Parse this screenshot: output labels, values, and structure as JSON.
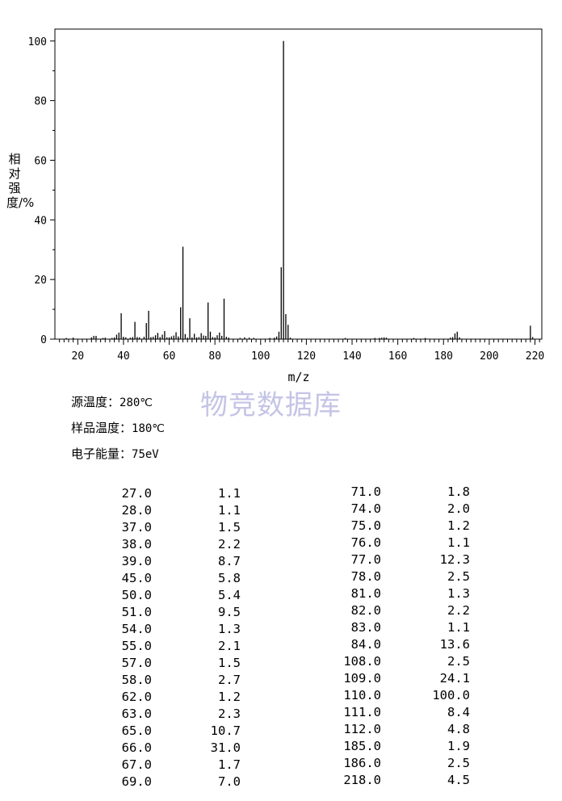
{
  "chart_data": {
    "type": "bar",
    "xlabel": "m/z",
    "ylabel": "相对强度/%",
    "xlim": [
      10,
      223
    ],
    "ylim": [
      0,
      104
    ],
    "xticks": [
      20,
      40,
      60,
      80,
      100,
      120,
      140,
      160,
      180,
      200,
      220
    ],
    "yticks": [
      0,
      20,
      40,
      60,
      80,
      100
    ],
    "peaks": [
      {
        "x": 15,
        "y": 0.4
      },
      {
        "x": 18,
        "y": 0.5
      },
      {
        "x": 26,
        "y": 0.6
      },
      {
        "x": 27,
        "y": 1.1
      },
      {
        "x": 28,
        "y": 1.1
      },
      {
        "x": 31,
        "y": 0.4
      },
      {
        "x": 32,
        "y": 0.5
      },
      {
        "x": 35,
        "y": 0.4
      },
      {
        "x": 36,
        "y": 0.6
      },
      {
        "x": 37,
        "y": 1.5
      },
      {
        "x": 38,
        "y": 2.2
      },
      {
        "x": 39,
        "y": 8.7
      },
      {
        "x": 40,
        "y": 0.8
      },
      {
        "x": 41,
        "y": 0.6
      },
      {
        "x": 43,
        "y": 0.5
      },
      {
        "x": 44,
        "y": 0.7
      },
      {
        "x": 45,
        "y": 5.8
      },
      {
        "x": 46,
        "y": 0.7
      },
      {
        "x": 47,
        "y": 0.6
      },
      {
        "x": 49,
        "y": 0.8
      },
      {
        "x": 50,
        "y": 5.4
      },
      {
        "x": 51,
        "y": 9.5
      },
      {
        "x": 52,
        "y": 0.7
      },
      {
        "x": 53,
        "y": 0.8
      },
      {
        "x": 54,
        "y": 1.3
      },
      {
        "x": 55,
        "y": 2.1
      },
      {
        "x": 56,
        "y": 0.7
      },
      {
        "x": 57,
        "y": 1.5
      },
      {
        "x": 58,
        "y": 2.7
      },
      {
        "x": 59,
        "y": 0.6
      },
      {
        "x": 60,
        "y": 0.6
      },
      {
        "x": 61,
        "y": 0.9
      },
      {
        "x": 62,
        "y": 1.2
      },
      {
        "x": 63,
        "y": 2.3
      },
      {
        "x": 64,
        "y": 0.9
      },
      {
        "x": 65,
        "y": 10.7
      },
      {
        "x": 66,
        "y": 31.0
      },
      {
        "x": 67,
        "y": 1.7
      },
      {
        "x": 68,
        "y": 0.5
      },
      {
        "x": 69,
        "y": 7.0
      },
      {
        "x": 70,
        "y": 0.6
      },
      {
        "x": 71,
        "y": 1.8
      },
      {
        "x": 72,
        "y": 0.6
      },
      {
        "x": 73,
        "y": 0.7
      },
      {
        "x": 74,
        "y": 2.0
      },
      {
        "x": 75,
        "y": 1.2
      },
      {
        "x": 76,
        "y": 1.1
      },
      {
        "x": 77,
        "y": 12.3
      },
      {
        "x": 78,
        "y": 2.5
      },
      {
        "x": 79,
        "y": 0.7
      },
      {
        "x": 80,
        "y": 0.6
      },
      {
        "x": 81,
        "y": 1.3
      },
      {
        "x": 82,
        "y": 2.2
      },
      {
        "x": 83,
        "y": 1.1
      },
      {
        "x": 84,
        "y": 13.6
      },
      {
        "x": 85,
        "y": 0.8
      },
      {
        "x": 86,
        "y": 0.5
      },
      {
        "x": 91,
        "y": 0.4
      },
      {
        "x": 93,
        "y": 0.6
      },
      {
        "x": 95,
        "y": 0.5
      },
      {
        "x": 97,
        "y": 0.4
      },
      {
        "x": 104,
        "y": 0.4
      },
      {
        "x": 106,
        "y": 0.5
      },
      {
        "x": 107,
        "y": 0.9
      },
      {
        "x": 108,
        "y": 2.5
      },
      {
        "x": 109,
        "y": 24.1
      },
      {
        "x": 110,
        "y": 100.0
      },
      {
        "x": 111,
        "y": 8.4
      },
      {
        "x": 112,
        "y": 4.8
      },
      {
        "x": 113,
        "y": 0.5
      },
      {
        "x": 137,
        "y": 0.4
      },
      {
        "x": 150,
        "y": 0.4
      },
      {
        "x": 152,
        "y": 0.4
      },
      {
        "x": 153,
        "y": 0.5
      },
      {
        "x": 154,
        "y": 0.6
      },
      {
        "x": 155,
        "y": 0.5
      },
      {
        "x": 167,
        "y": 0.4
      },
      {
        "x": 172,
        "y": 0.4
      },
      {
        "x": 183,
        "y": 0.5
      },
      {
        "x": 184,
        "y": 0.7
      },
      {
        "x": 185,
        "y": 1.9
      },
      {
        "x": 186,
        "y": 2.5
      },
      {
        "x": 187,
        "y": 0.6
      },
      {
        "x": 218,
        "y": 4.5
      },
      {
        "x": 219,
        "y": 0.7
      }
    ]
  },
  "watermark": "物竞数据库",
  "conditions": [
    {
      "label": "源温度：",
      "value": "280℃"
    },
    {
      "label": "样品温度：",
      "value": "180℃"
    },
    {
      "label": "电子能量：",
      "value": "75eV"
    }
  ],
  "table_left": [
    [
      "27.0",
      "1.1"
    ],
    [
      "28.0",
      "1.1"
    ],
    [
      "37.0",
      "1.5"
    ],
    [
      "38.0",
      "2.2"
    ],
    [
      "39.0",
      "8.7"
    ],
    [
      "45.0",
      "5.8"
    ],
    [
      "50.0",
      "5.4"
    ],
    [
      "51.0",
      "9.5"
    ],
    [
      "54.0",
      "1.3"
    ],
    [
      "55.0",
      "2.1"
    ],
    [
      "57.0",
      "1.5"
    ],
    [
      "58.0",
      "2.7"
    ],
    [
      "62.0",
      "1.2"
    ],
    [
      "63.0",
      "2.3"
    ],
    [
      "65.0",
      "10.7"
    ],
    [
      "66.0",
      "31.0"
    ],
    [
      "67.0",
      "1.7"
    ],
    [
      "69.0",
      "7.0"
    ]
  ],
  "table_right": [
    [
      "71.0",
      "1.8"
    ],
    [
      "74.0",
      "2.0"
    ],
    [
      "75.0",
      "1.2"
    ],
    [
      "76.0",
      "1.1"
    ],
    [
      "77.0",
      "12.3"
    ],
    [
      "78.0",
      "2.5"
    ],
    [
      "81.0",
      "1.3"
    ],
    [
      "82.0",
      "2.2"
    ],
    [
      "83.0",
      "1.1"
    ],
    [
      "84.0",
      "13.6"
    ],
    [
      "108.0",
      "2.5"
    ],
    [
      "109.0",
      "24.1"
    ],
    [
      "110.0",
      "100.0"
    ],
    [
      "111.0",
      "8.4"
    ],
    [
      "112.0",
      "4.8"
    ],
    [
      "185.0",
      "1.9"
    ],
    [
      "186.0",
      "2.5"
    ],
    [
      "218.0",
      "4.5"
    ]
  ]
}
